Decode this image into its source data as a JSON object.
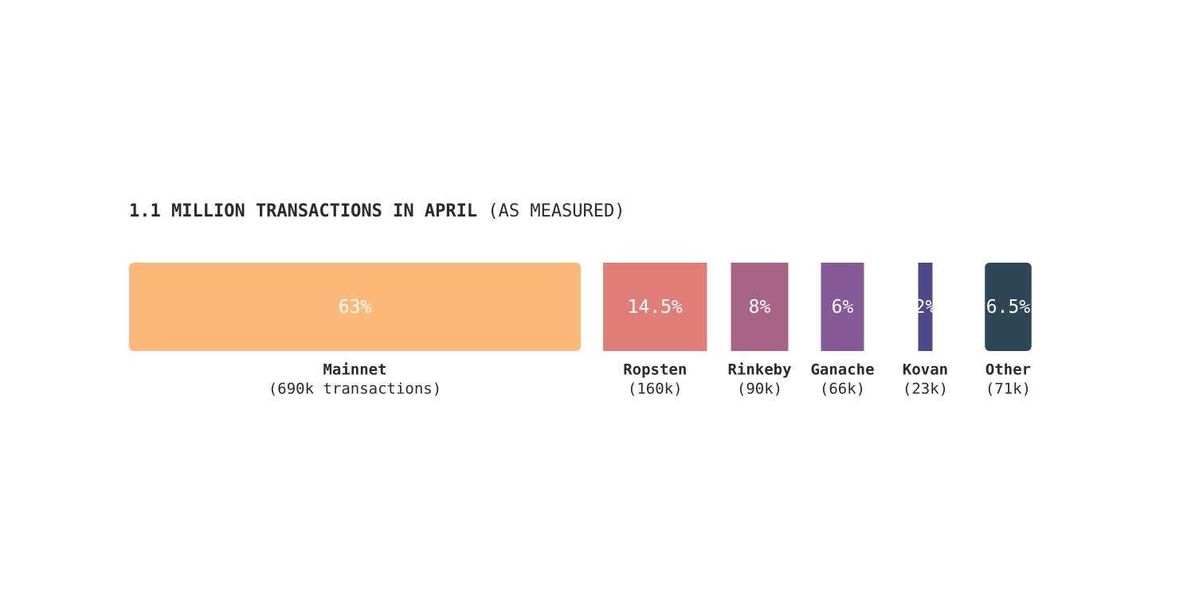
{
  "chart_data": {
    "type": "proportion-bar",
    "title": "1.1 MILLION TRANSACTIONS IN APRIL",
    "subtitle": "(AS MEASURED)",
    "categories": [
      "Mainnet",
      "Ropsten",
      "Rinkeby",
      "Ganache",
      "Kovan",
      "Other"
    ],
    "values": [
      63,
      14.5,
      8,
      6,
      2,
      6.5
    ],
    "value_labels": [
      "63%",
      "14.5%",
      "8%",
      "6%",
      "2%",
      "6.5%"
    ],
    "count_labels": [
      "(690k transactions)",
      "(160k)",
      "(90k)",
      "(66k)",
      "(23k)",
      "(71k)"
    ],
    "colors": [
      "#fdb97a",
      "#e07f7a",
      "#a86484",
      "#855a96",
      "#4d4a87",
      "#2e4756"
    ]
  }
}
